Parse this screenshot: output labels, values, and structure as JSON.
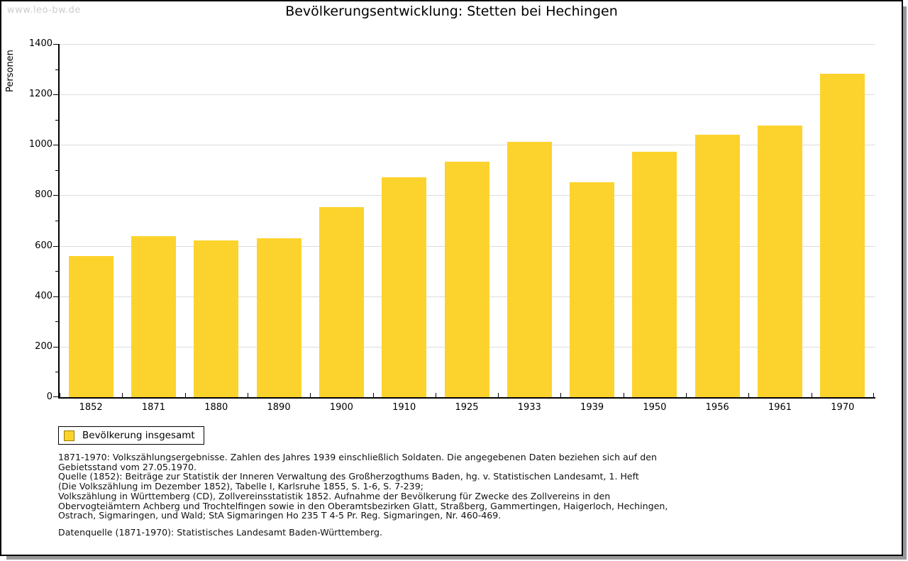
{
  "watermark": "www.leo-bw.de",
  "title": "Bevölkerungsentwicklung: Stetten bei Hechingen",
  "chart_data": {
    "type": "bar",
    "title": "Bevölkerungsentwicklung: Stetten bei Hechingen",
    "xlabel": "",
    "ylabel": "Personen",
    "categories": [
      "1852",
      "1871",
      "1880",
      "1890",
      "1900",
      "1910",
      "1925",
      "1933",
      "1939",
      "1950",
      "1956",
      "1961",
      "1970"
    ],
    "values": [
      560,
      639,
      622,
      630,
      754,
      871,
      933,
      1011,
      852,
      972,
      1039,
      1076,
      1283
    ],
    "series_name": "Bevölkerung insgesamt",
    "ylim": [
      0,
      1400
    ],
    "ytick_step": 200,
    "ytick_minor_step": 100,
    "grid": true,
    "legend_position": "bottom-left",
    "bar_color": "#FCD32C",
    "gridline_color": "#dcdcdc"
  },
  "legend": {
    "label": "Bevölkerung insgesamt",
    "swatch_color": "#FCD32C"
  },
  "footnotes": {
    "lines": [
      "1871-1970: Volkszählungsergebnisse. Zahlen des Jahres 1939 einschließlich Soldaten. Die angegebenen Daten beziehen sich auf den",
      "Gebietsstand vom 27.05.1970.",
      "Quelle (1852): Beiträge zur Statistik der Inneren Verwaltung des Großherzogthums Baden, hg. v. Statistischen Landesamt, 1. Heft",
      "(Die Volkszählung im Dezember 1852), Tabelle I, Karlsruhe 1855, S. 1-6, S. 7-239;",
      "Volkszählung in Württemberg (CD), Zollvereinsstatistik 1852. Aufnahme der Bevölkerung für Zwecke des Zollvereins in den",
      "Obervogteiämtern Achberg und Trochtelfingen sowie in den Oberamtsbezirken Glatt, Straßberg, Gammertingen, Haigerloch, Hechingen,",
      "Ostrach, Sigmaringen, und Wald; StA Sigmaringen Ho 235 T 4-5 Pr. Reg. Sigmaringen, Nr. 460-469."
    ],
    "datasource": "Datenquelle (1871-1970): Statistisches Landesamt Baden-Württemberg."
  }
}
